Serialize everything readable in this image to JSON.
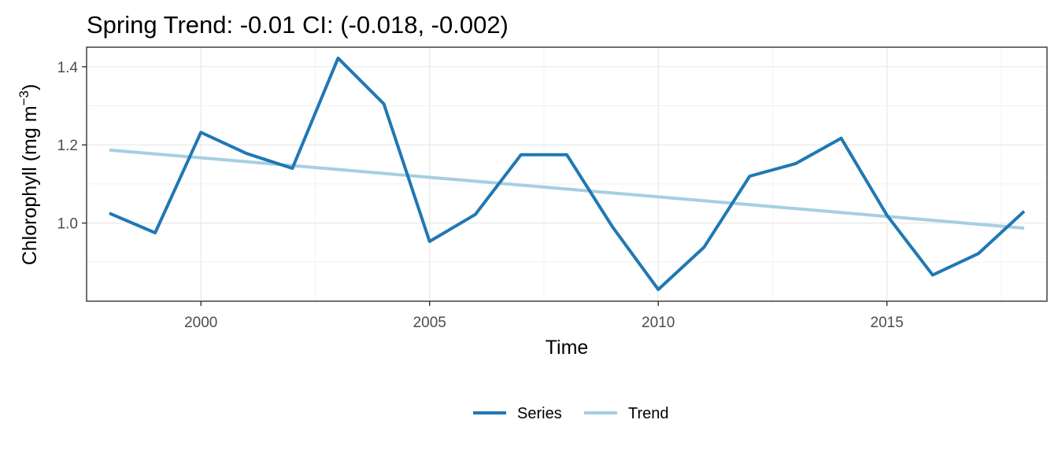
{
  "chart_data": {
    "type": "line",
    "title": "Spring Trend: -0.01 CI: (-0.018, -0.002)",
    "xlabel": "Time",
    "ylabel": "Chlorophyll (mg m",
    "ylabel_unit_sup": "−3",
    "ylabel_close": ")",
    "xlim": [
      1997.5,
      2018.5
    ],
    "ylim": [
      0.8,
      1.45
    ],
    "x_ticks": [
      2000,
      2005,
      2010,
      2015
    ],
    "x_tick_labels": [
      "2000",
      "2005",
      "2010",
      "2015"
    ],
    "y_ticks": [
      1.0,
      1.2,
      1.4
    ],
    "y_tick_labels": [
      "1.0",
      "1.2",
      "1.4"
    ],
    "grid": true,
    "legend_position": "bottom",
    "x": [
      1998,
      1999,
      2000,
      2001,
      2002,
      2003,
      2004,
      2005,
      2006,
      2007,
      2008,
      2009,
      2010,
      2011,
      2012,
      2013,
      2014,
      2015,
      2016,
      2017,
      2018
    ],
    "series": [
      {
        "name": "Series",
        "color": "#1f78b4",
        "values": [
          1.025,
          0.975,
          1.232,
          1.178,
          1.14,
          1.422,
          1.305,
          0.953,
          1.022,
          1.175,
          1.175,
          0.99,
          0.83,
          0.938,
          1.12,
          1.152,
          1.217,
          1.02,
          0.867,
          0.922,
          1.03
        ]
      },
      {
        "name": "Trend",
        "color": "#a6cee3",
        "values": [
          1.187,
          1.177,
          1.167,
          1.157,
          1.147,
          1.137,
          1.127,
          1.117,
          1.107,
          1.097,
          1.087,
          1.077,
          1.067,
          1.057,
          1.047,
          1.037,
          1.027,
          1.017,
          1.007,
          0.997,
          0.987
        ]
      }
    ]
  }
}
